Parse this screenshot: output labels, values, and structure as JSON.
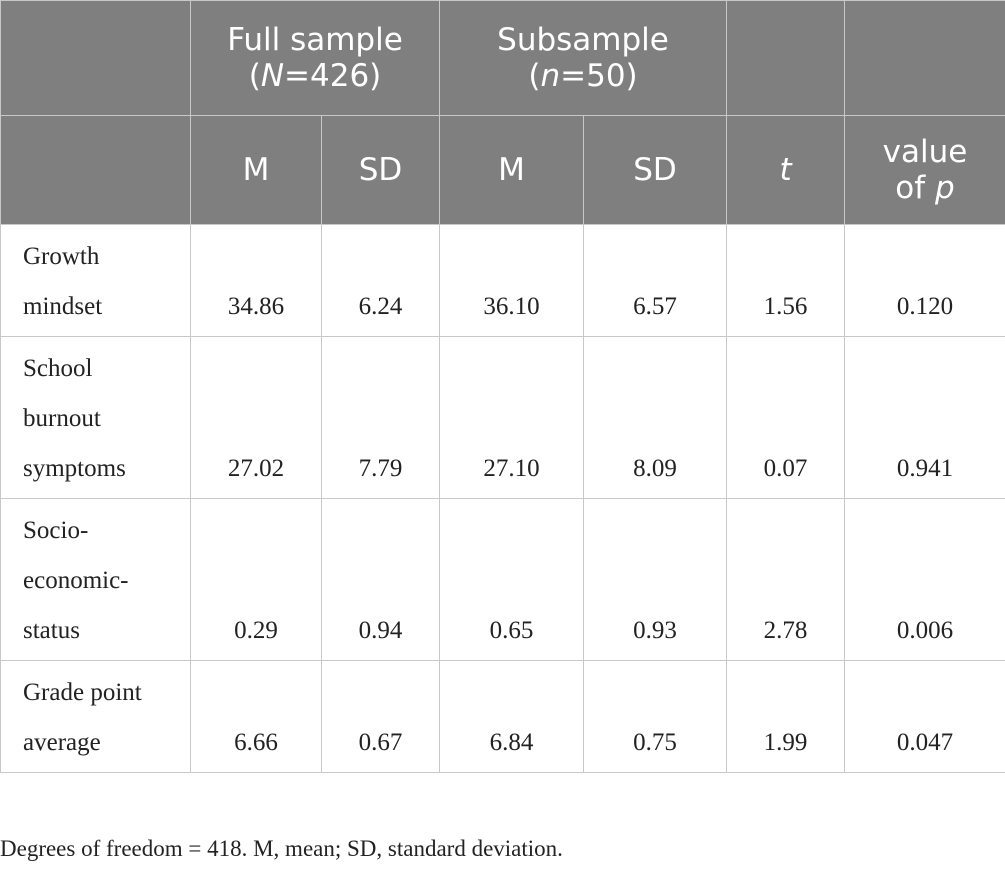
{
  "header": {
    "full_sample_title": "Full sample",
    "full_sample_n_var": "N",
    "full_sample_n_val": "=426)",
    "subsample_title": "Subsample",
    "subsample_n_var": "n",
    "subsample_n_val": "=50)",
    "col_m1": "M",
    "col_sd1": "SD",
    "col_m2": "M",
    "col_sd2": "SD",
    "col_t": "t",
    "col_p_prefix": "value",
    "col_p_of": "of ",
    "col_p_var": "p"
  },
  "rows": [
    {
      "label_lines": [
        "Growth",
        "mindset"
      ],
      "m1": "34.86",
      "sd1": "6.24",
      "m2": "36.10",
      "sd2": "6.57",
      "t": "1.56",
      "p": "0.120"
    },
    {
      "label_lines": [
        "School",
        "burnout",
        "symptoms"
      ],
      "m1": "27.02",
      "sd1": "7.79",
      "m2": "27.10",
      "sd2": "8.09",
      "t": "0.07",
      "p": "0.941"
    },
    {
      "label_lines": [
        "Socio-",
        "economic-",
        "status"
      ],
      "m1": "0.29",
      "sd1": "0.94",
      "m2": "0.65",
      "sd2": "0.93",
      "t": "2.78",
      "p": "0.006"
    },
    {
      "label_lines": [
        "Grade point",
        "average"
      ],
      "m1": "6.66",
      "sd1": "0.67",
      "m2": "6.84",
      "sd2": "0.75",
      "t": "1.99",
      "p": "0.047"
    }
  ],
  "note": "Degrees of freedom = 418. M, mean; SD, standard deviation."
}
